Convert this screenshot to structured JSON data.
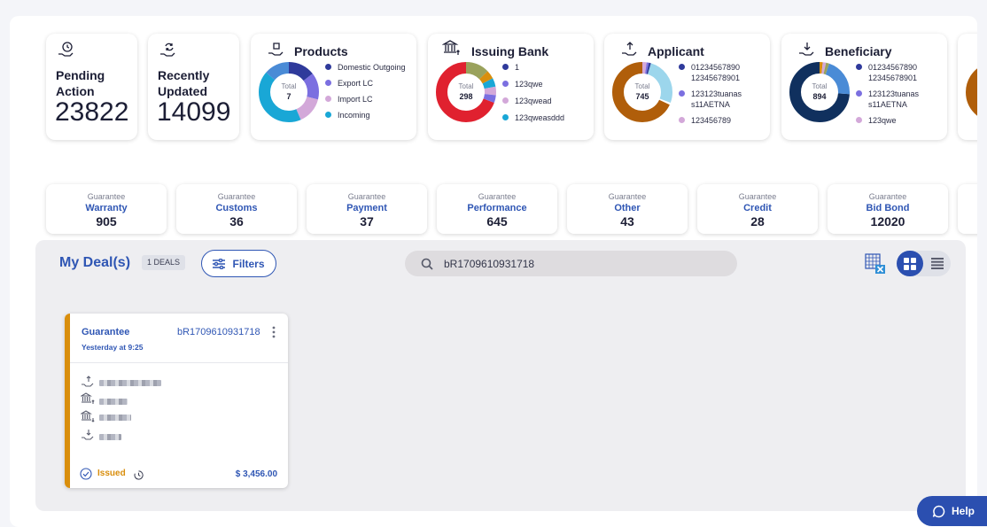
{
  "counts": [
    {
      "title_line1": "Pending",
      "title_line2": "Action",
      "value": "23822",
      "icon": "hand-clock-icon"
    },
    {
      "title_line1": "Recently",
      "title_line2": "Updated",
      "value": "14099",
      "icon": "hand-refresh-icon"
    }
  ],
  "donuts": [
    {
      "title": "Products",
      "total_label": "Total",
      "total": "7",
      "icon": "hand-box-icon",
      "legend": [
        {
          "label": "Domestic Outgoing",
          "color": "#2f3a9b"
        },
        {
          "label": "Export LC",
          "color": "#7b6fe0"
        },
        {
          "label": "Import LC",
          "color": "#d3a8d9"
        },
        {
          "label": "Incoming",
          "color": "#19a7d6"
        }
      ]
    },
    {
      "title": "Issuing Bank",
      "total_label": "Total",
      "total": "298",
      "icon": "bank-upload-icon",
      "legend": [
        {
          "label": "1",
          "color": "#2f3a9b"
        },
        {
          "label": "123qwe",
          "color": "#7b6fe0"
        },
        {
          "label": "123qwead",
          "color": "#d3a8d9"
        },
        {
          "label": "123qweasddd",
          "color": "#19a7d6"
        }
      ]
    },
    {
      "title": "Applicant",
      "total_label": "Total",
      "total": "745",
      "icon": "hand-upload-icon",
      "legend": [
        {
          "label": "01234567890 12345678901",
          "color": "#2f3a9b"
        },
        {
          "label": "123123tuanas s11AETNA",
          "color": "#7b6fe0"
        },
        {
          "label": "123456789",
          "color": "#d3a8d9"
        }
      ]
    },
    {
      "title": "Beneficiary",
      "total_label": "Total",
      "total": "894",
      "icon": "hand-download-icon",
      "legend": [
        {
          "label": "01234567890 12345678901",
          "color": "#2f3a9b"
        },
        {
          "label": "123123tuanas s11AETNA",
          "color": "#7b6fe0"
        },
        {
          "label": "123qwe",
          "color": "#d3a8d9"
        }
      ]
    }
  ],
  "guarantees": [
    {
      "small": "Guarantee",
      "type": "Warranty",
      "count": "905"
    },
    {
      "small": "Guarantee",
      "type": "Customs",
      "count": "36"
    },
    {
      "small": "Guarantee",
      "type": "Payment",
      "count": "37"
    },
    {
      "small": "Guarantee",
      "type": "Performance",
      "count": "645"
    },
    {
      "small": "Guarantee",
      "type": "Other",
      "count": "43"
    },
    {
      "small": "Guarantee",
      "type": "Credit",
      "count": "28"
    },
    {
      "small": "Guarantee",
      "type": "Bid Bond",
      "count": "12020"
    }
  ],
  "deals": {
    "title": "My Deal(s)",
    "badge": "1 DEALS",
    "filters_label": "Filters",
    "search_value": "bR1709610931718",
    "card": {
      "type": "Guarantee",
      "reference": "bR1709610931718",
      "time": "Yesterday at 9:25",
      "status": "Issued",
      "amount": "$ 3,456.00"
    }
  },
  "help_label": "Help",
  "colors": {
    "accent": "#2b4fb0",
    "status_issued": "#d98e0c",
    "card_bar": "#d98e0c"
  }
}
